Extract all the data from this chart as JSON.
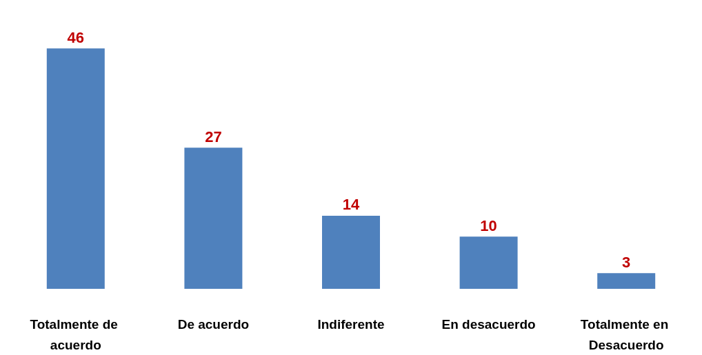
{
  "chart_data": {
    "type": "bar",
    "categories": [
      "Totalmente de acuerdo",
      "De acuerdo",
      "Indiferente",
      "En desacuerdo",
      "Totalmente en Desacuerdo"
    ],
    "values": [
      46,
      27,
      14,
      10,
      3
    ],
    "color": "#4f81bd",
    "data_labels": true
  }
}
